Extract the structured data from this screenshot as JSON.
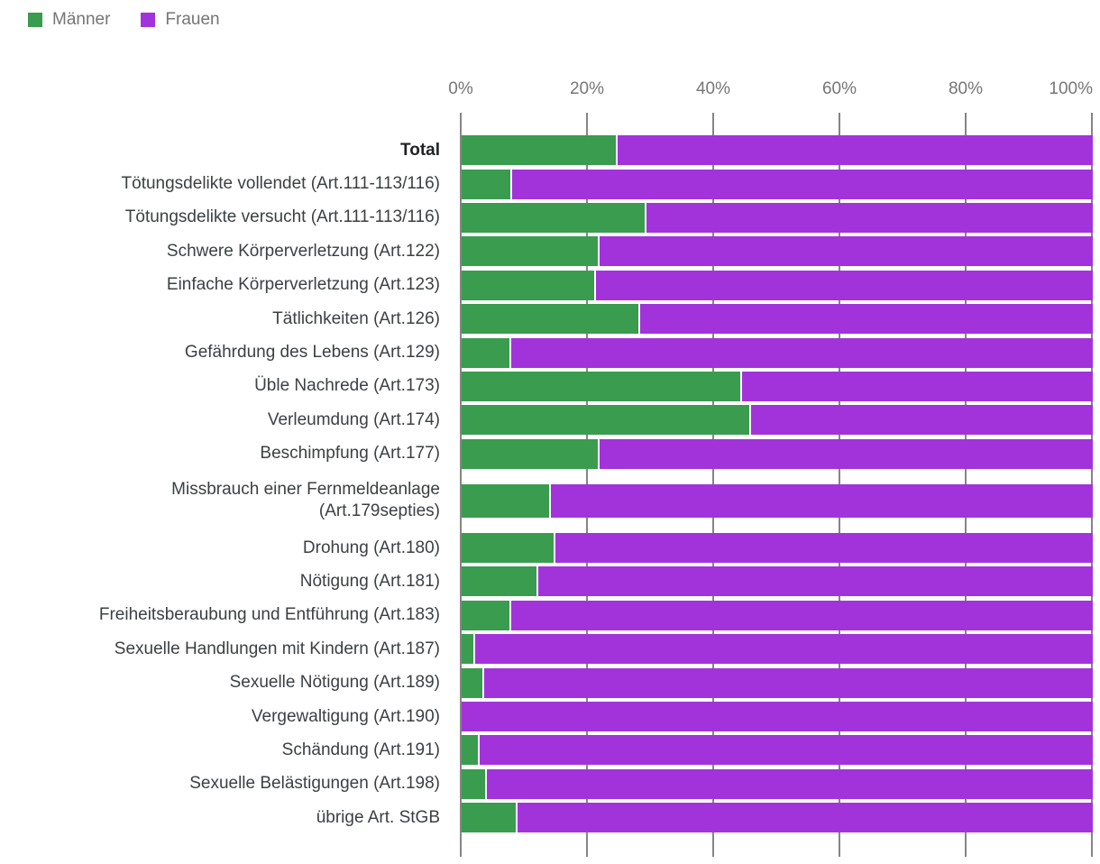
{
  "legend": {
    "items": [
      {
        "label": "Männer",
        "color": "#3a9c4e"
      },
      {
        "label": "Frauen",
        "color": "#a233db"
      }
    ]
  },
  "chart_data": {
    "type": "bar",
    "orientation": "horizontal",
    "stacked": true,
    "title": "",
    "xlabel": "",
    "ylabel": "",
    "value_unit": "percent",
    "x_axis": {
      "position": "top",
      "range": [
        0,
        100
      ],
      "ticks": [
        "0%",
        "20%",
        "40%",
        "60%",
        "80%",
        "100%"
      ],
      "grid": true
    },
    "legend_position": "top-left",
    "categories": [
      "Total",
      "Tötungsdelikte vollendet (Art.111-113/116)",
      "Tötungsdelikte versucht (Art.111-113/116)",
      "Schwere Körperverletzung (Art.122)",
      "Einfache Körperverletzung (Art.123)",
      "Tätlichkeiten (Art.126)",
      "Gefährdung des Lebens (Art.129)",
      "Üble Nachrede (Art.173)",
      "Verleumdung (Art.174)",
      "Beschimpfung (Art.177)",
      "Missbrauch einer Fernmeldeanlage\n(Art.179septies)",
      "Drohung (Art.180)",
      "Nötigung (Art.181)",
      "Freiheitsberaubung und Entführung (Art.183)",
      "Sexuelle Handlungen mit Kindern (Art.187)",
      "Sexuelle Nötigung (Art.189)",
      "Vergewaltigung (Art.190)",
      "Schändung (Art.191)",
      "Sexuelle Belästigungen (Art.198)",
      "übrige Art. StGB"
    ],
    "series": [
      {
        "name": "Männer",
        "color": "#3a9c4e",
        "values": [
          24.7,
          8.0,
          29.3,
          21.9,
          21.3,
          28.3,
          7.9,
          44.4,
          45.9,
          21.8,
          14.1,
          14.8,
          12.1,
          7.9,
          2.1,
          3.5,
          0,
          2.8,
          4.0,
          8.9
        ]
      },
      {
        "name": "Frauen",
        "color": "#a233db",
        "values": [
          75.3,
          92.0,
          70.7,
          78.1,
          78.7,
          71.7,
          92.1,
          55.6,
          54.1,
          78.2,
          85.9,
          85.2,
          87.9,
          92.1,
          97.9,
          96.5,
          100,
          97.2,
          96.0,
          91.1
        ]
      }
    ]
  }
}
